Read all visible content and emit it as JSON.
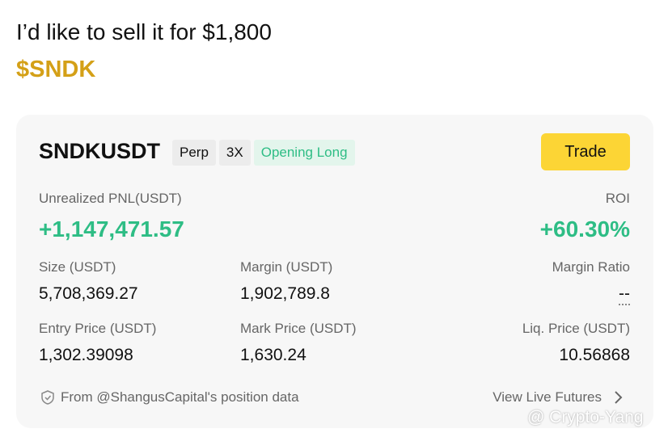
{
  "post": {
    "text": "I’d like to sell it for $1,800",
    "ticker": "$SNDK"
  },
  "card": {
    "symbol": "SNDKUSDT",
    "tags": [
      "Perp",
      "3X",
      "Opening Long"
    ],
    "button": "Trade",
    "pnl_label": "Unrealized PNL(USDT)",
    "pnl": "+1,147,471.57",
    "roi_label": "ROI",
    "roi": "+60.30%",
    "fields": [
      {
        "label": "Size (USDT)",
        "value": "5,708,369.27"
      },
      {
        "label": "Margin (USDT)",
        "value": "1,902,789.8"
      },
      {
        "label": "Margin Ratio",
        "value": "--"
      },
      {
        "label": "Entry Price (USDT)",
        "value": "1,302.39098"
      },
      {
        "label": "Mark Price (USDT)",
        "value": "1,630.24"
      },
      {
        "label": "Liq. Price (USDT)",
        "value": "10.56868"
      }
    ],
    "source": "From @ShangusCapital's position data",
    "link": "View Live Futures"
  },
  "watermark": "@ Crypto-Yang"
}
